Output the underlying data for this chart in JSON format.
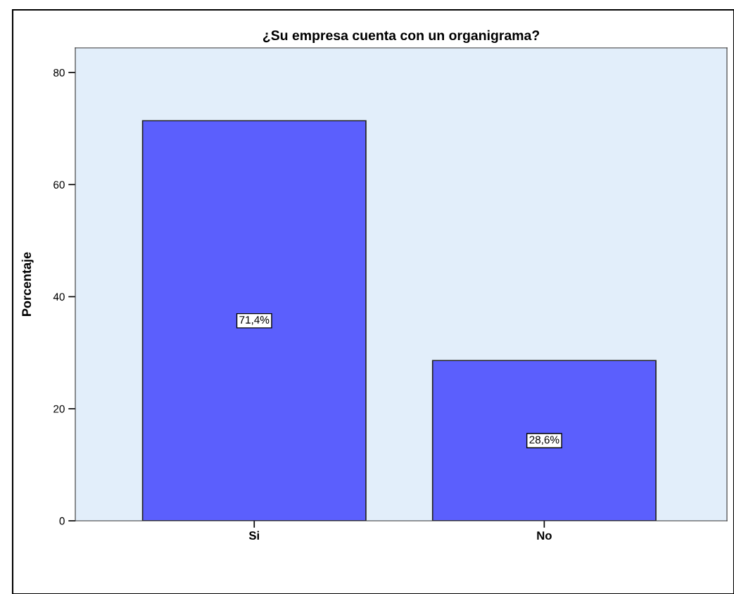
{
  "chart_data": {
    "type": "bar",
    "title": "¿Su empresa cuenta con un organigrama?",
    "ylabel": "Porcentaje",
    "categories": [
      "Si",
      "No"
    ],
    "values": [
      71.4,
      28.6
    ],
    "value_labels": [
      "71,4%",
      "28,6%"
    ],
    "color": "#5b5ffd",
    "ylim": [
      0,
      84.4
    ],
    "yticks": [
      0,
      20,
      40,
      60,
      80
    ],
    "grid": false,
    "legend": false
  }
}
